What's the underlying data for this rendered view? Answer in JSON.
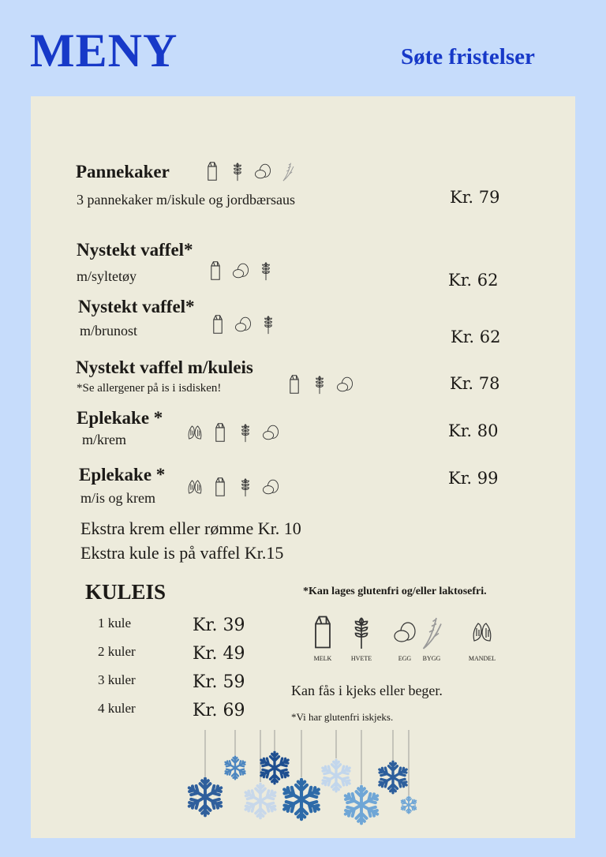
{
  "header": {
    "title": "MENY",
    "subtitle": "Søte fristelser"
  },
  "items": [
    {
      "name": "Pannekaker",
      "desc": "3 pannekaker m/iskule og jordbærsaus",
      "price": "Kr. 79",
      "allergens": [
        "milk-icon",
        "wheat-icon",
        "egg-icon",
        "barley-icon"
      ]
    },
    {
      "name": "Nystekt vaffel*",
      "desc": "m/syltetøy",
      "price": "Kr. 62",
      "allergens": [
        "milk-icon",
        "egg-icon",
        "wheat-icon"
      ]
    },
    {
      "name": "Nystekt vaffel*",
      "desc": "m/brunost",
      "price": "Kr. 62",
      "allergens": [
        "milk-icon",
        "egg-icon",
        "wheat-icon"
      ]
    },
    {
      "name": "Nystekt vaffel m/kuleis",
      "desc": "*Se allergener på is i isdisken!",
      "price": "Kr. 78",
      "allergens": [
        "milk-icon",
        "wheat-icon",
        "egg-icon"
      ]
    },
    {
      "name": "Eplekake *",
      "desc": "m/krem",
      "price": "Kr. 80",
      "allergens": [
        "almond-icon",
        "milk-icon",
        "wheat-icon",
        "egg-icon"
      ]
    },
    {
      "name": "Eplekake *",
      "desc": "m/is og krem",
      "price": "Kr. 99",
      "allergens": [
        "almond-icon",
        "milk-icon",
        "wheat-icon",
        "egg-icon"
      ]
    }
  ],
  "extras": [
    "Ekstra krem eller rømme  Kr. 10",
    "Ekstra kule is på vaffel  Kr.15"
  ],
  "kuleis": {
    "title": "KULEIS",
    "rows": [
      {
        "label": "1 kule",
        "price": "Kr. 39"
      },
      {
        "label": "2 kuler",
        "price": "Kr. 49"
      },
      {
        "label": "3 kuler",
        "price": "Kr. 59"
      },
      {
        "label": "4 kuler",
        "price": "Kr. 69"
      }
    ]
  },
  "notes": {
    "gluten_lactose": "*Kan lages glutenfri og/eller laktosefri.",
    "cone": "Kan fås i kjeks eller beger.",
    "gluten_free_cone": "*Vi har glutenfri iskjeks."
  },
  "legend": [
    {
      "icon": "milk-icon",
      "label": "MELK"
    },
    {
      "icon": "wheat-icon",
      "label": "HVETE"
    },
    {
      "icon": "egg-icon",
      "label": "EGG"
    },
    {
      "icon": "barley-icon",
      "label": "BYGG"
    },
    {
      "icon": "almond-icon",
      "label": "MANDEL"
    }
  ],
  "colors": {
    "background": "#c6dcfb",
    "panel": "#edebdc",
    "heading": "#1739c8",
    "snowflake": "#3a6fb0"
  }
}
